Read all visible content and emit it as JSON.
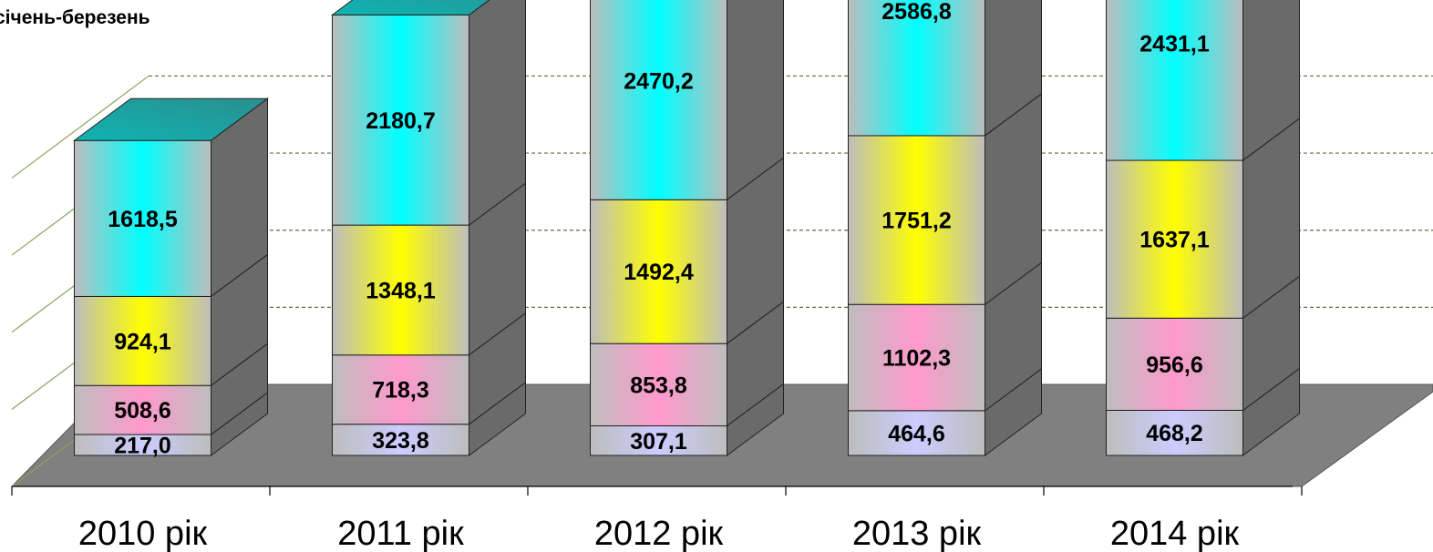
{
  "chart_data": {
    "type": "bar",
    "stacked": true,
    "three_d": true,
    "title": "",
    "period_label": "січень-березень",
    "categories": [
      "2010 рік",
      "2011 рік",
      "2012 рік",
      "2013 рік",
      "2014 рік"
    ],
    "series": [
      {
        "values": [
          217.0,
          323.8,
          307.1,
          464.6,
          468.2
        ],
        "color": "#ccccff"
      },
      {
        "values": [
          508.6,
          718.3,
          853.8,
          1102.3,
          956.6
        ],
        "color": "#ff99cc"
      },
      {
        "values": [
          924.1,
          1348.1,
          1492.4,
          1751.2,
          1637.1
        ],
        "color": "#ffff00"
      },
      {
        "values": [
          1618.5,
          2180.7,
          2470.2,
          2586.8,
          2431.1
        ],
        "color": "#00ffff"
      }
    ],
    "value_labels": [
      [
        "217,0",
        "323,8",
        "307,1",
        "464,6",
        "468,2"
      ],
      [
        "508,6",
        "718,3",
        "853,8",
        "1102,3",
        "956,6"
      ],
      [
        "924,1",
        "1348,1",
        "1492,4",
        "1751,2",
        "1637,1"
      ],
      [
        "1618,5",
        "2180,7",
        "2470,2",
        "2586,8",
        "2431,1"
      ]
    ],
    "grid": true,
    "legend": "none",
    "colors": {
      "floor": "#808080",
      "side": "#6a6a6a",
      "top": "#1aa7a7",
      "neutral": "#bdbdbd"
    }
  }
}
